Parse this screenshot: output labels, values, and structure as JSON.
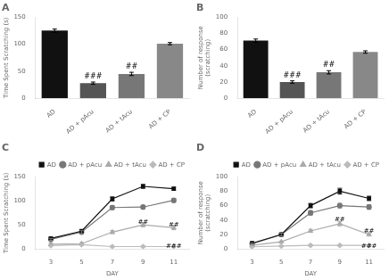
{
  "chart_data": [
    {
      "type": "bar",
      "title": "A",
      "categories": [
        "AD",
        "AD + pAcu",
        "AD + tAcu",
        "AD + CP"
      ],
      "values": [
        125,
        28,
        45,
        101
      ],
      "errors": [
        3,
        2,
        3,
        2
      ],
      "colors": [
        "#111111",
        "#555555",
        "#777777",
        "#888888"
      ],
      "ylabel": "Time Spent Scratching (s)",
      "ylim": [
        0,
        150
      ],
      "yticks": [
        0,
        50,
        100,
        150
      ],
      "annotations": [
        null,
        "###",
        "##",
        null
      ],
      "grid": false
    },
    {
      "type": "bar",
      "title": "B",
      "categories": [
        "AD",
        "AD + pAcu",
        "AD + tAcu",
        "AD + CP"
      ],
      "values": [
        71,
        20,
        32,
        57
      ],
      "errors": [
        2,
        1.5,
        2,
        1.5
      ],
      "colors": [
        "#111111",
        "#555555",
        "#777777",
        "#888888"
      ],
      "ylabel": "Number of response\n(scratching)",
      "ylim": [
        0,
        100
      ],
      "yticks": [
        0,
        20,
        40,
        60,
        80,
        100
      ],
      "annotations": [
        null,
        "###",
        "##",
        null
      ],
      "grid": false
    },
    {
      "type": "line",
      "title": "C",
      "x": [
        3,
        5,
        7,
        9,
        11
      ],
      "xlabel": "DAY",
      "ylabel": "Time Spent Scratching (s)",
      "xlim": [
        2,
        12
      ],
      "xticks": [
        3,
        5,
        7,
        9,
        11
      ],
      "ylim": [
        0,
        150
      ],
      "yticks": [
        0,
        50,
        100,
        150
      ],
      "series": [
        {
          "name": "AD",
          "color": "#111111",
          "marker": "square",
          "values": [
            22,
            37,
            104,
            130,
            125
          ],
          "errors": [
            2,
            3,
            4,
            4,
            3
          ]
        },
        {
          "name": "AD + pAcu",
          "color": "#777777",
          "marker": "circle",
          "values": [
            20,
            35,
            86,
            87,
            101
          ],
          "errors": [
            2,
            3,
            4,
            3,
            4
          ]
        },
        {
          "name": "AD + tAcu",
          "color": "#aaaaaa",
          "marker": "triangle",
          "values": [
            10,
            11,
            35,
            50,
            44
          ],
          "errors": [
            2,
            2,
            3,
            4,
            4
          ]
        },
        {
          "name": "AD + CP",
          "color": "#bbbbbb",
          "marker": "diamond",
          "values": [
            7,
            9,
            5,
            5,
            5
          ],
          "errors": [
            1,
            1,
            1,
            1,
            1
          ]
        }
      ],
      "annotations": [
        {
          "text": "##",
          "x": 9,
          "y": 53
        },
        {
          "text": "##",
          "x": 11,
          "y": 47
        },
        {
          "text": "###",
          "x": 11,
          "y": 2
        }
      ],
      "legend": "upper right",
      "grid": false
    },
    {
      "type": "line",
      "title": "D",
      "x": [
        3,
        5,
        7,
        9,
        11
      ],
      "xlabel": "DAY",
      "ylabel": "Number of response\n(scratching)",
      "xlim": [
        2,
        12
      ],
      "xticks": [
        3,
        5,
        7,
        9,
        11
      ],
      "ylim": [
        0,
        100
      ],
      "yticks": [
        0,
        20,
        40,
        60,
        80,
        100
      ],
      "series": [
        {
          "name": "AD",
          "color": "#111111",
          "marker": "square",
          "values": [
            8,
            20,
            60,
            80,
            70
          ],
          "errors": [
            1,
            2,
            3,
            4,
            3
          ]
        },
        {
          "name": "AD + pAcu",
          "color": "#777777",
          "marker": "circle",
          "values": [
            7,
            20,
            50,
            60,
            58
          ],
          "errors": [
            1,
            2,
            3,
            3,
            3
          ]
        },
        {
          "name": "AD + tAcu",
          "color": "#aaaaaa",
          "marker": "triangle",
          "values": [
            5,
            10,
            25,
            35,
            20
          ],
          "errors": [
            1,
            1,
            2,
            3,
            2
          ]
        },
        {
          "name": "AD + CP",
          "color": "#bbbbbb",
          "marker": "diamond",
          "values": [
            3,
            4,
            5,
            5,
            5
          ],
          "errors": [
            0.5,
            0.5,
            1,
            1,
            1
          ]
        }
      ],
      "annotations": [
        {
          "text": "##",
          "x": 9,
          "y": 38
        },
        {
          "text": "##",
          "x": 11,
          "y": 23
        },
        {
          "text": "###",
          "x": 11,
          "y": 1
        }
      ],
      "legend": "upper right",
      "grid": false
    }
  ]
}
